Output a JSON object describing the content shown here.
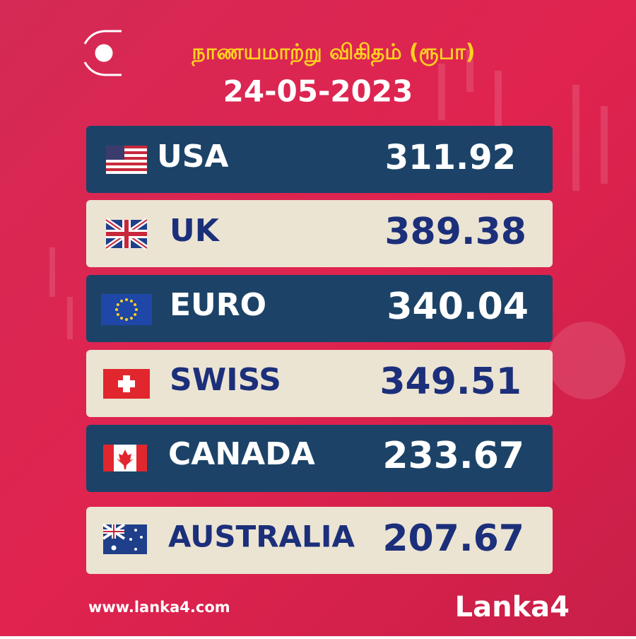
{
  "header": {
    "title": "நாணயமாற்று விகிதம் (ரூபா)",
    "date": "24-05-2023"
  },
  "rows": [
    {
      "country": "USA",
      "rate": "311.92"
    },
    {
      "country": "UK",
      "rate": "389.38"
    },
    {
      "country": "EURO",
      "rate": "340.04"
    },
    {
      "country": "SWISS",
      "rate": "349.51"
    },
    {
      "country": "CANADA",
      "rate": "233.67"
    },
    {
      "country": "AUSTRALIA",
      "rate": "207.67"
    }
  ],
  "footer": {
    "website": "www.lanka4.com",
    "brand": "Lanka4"
  }
}
